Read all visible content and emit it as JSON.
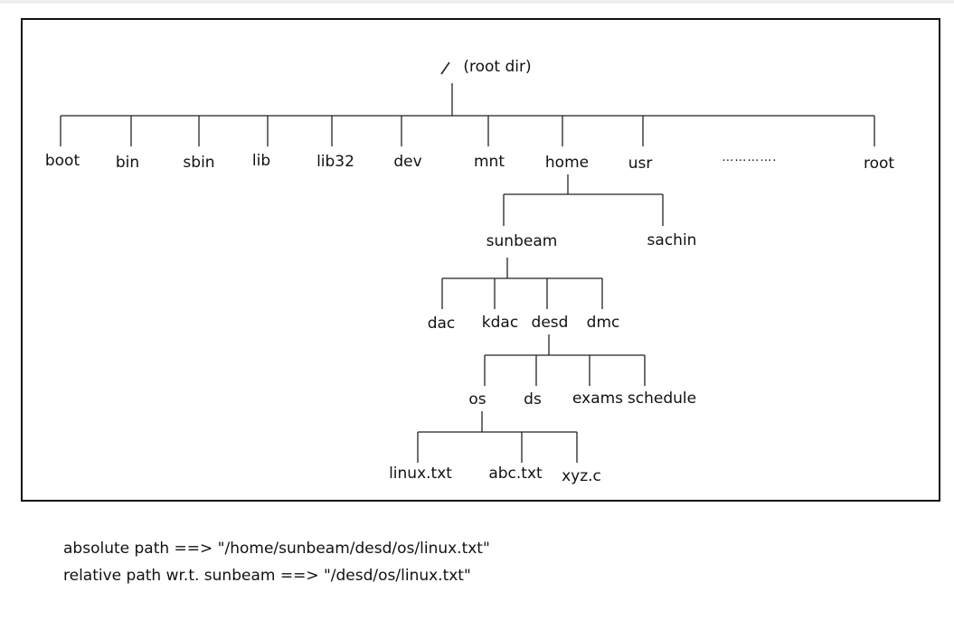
{
  "root": {
    "slash": "/",
    "caption": "(root dir)"
  },
  "level1": [
    "boot",
    "bin",
    "sbin",
    "lib",
    "lib32",
    "dev",
    "mnt",
    "home",
    "usr",
    "………….",
    "root"
  ],
  "home_children": [
    "sunbeam",
    "sachin"
  ],
  "sunbeam_children": [
    "dac",
    "kdac",
    "desd",
    "dmc"
  ],
  "desd_children": [
    "os",
    "ds",
    "exams",
    "schedule"
  ],
  "os_children": [
    "linux.txt",
    "abc.txt",
    "xyz.c"
  ],
  "notes": {
    "absolute": "absolute path ==> \"/home/sunbeam/desd/os/linux.txt\"",
    "relative": "relative path  wr.t. sunbeam ==> \"/desd/os/linux.txt\""
  }
}
